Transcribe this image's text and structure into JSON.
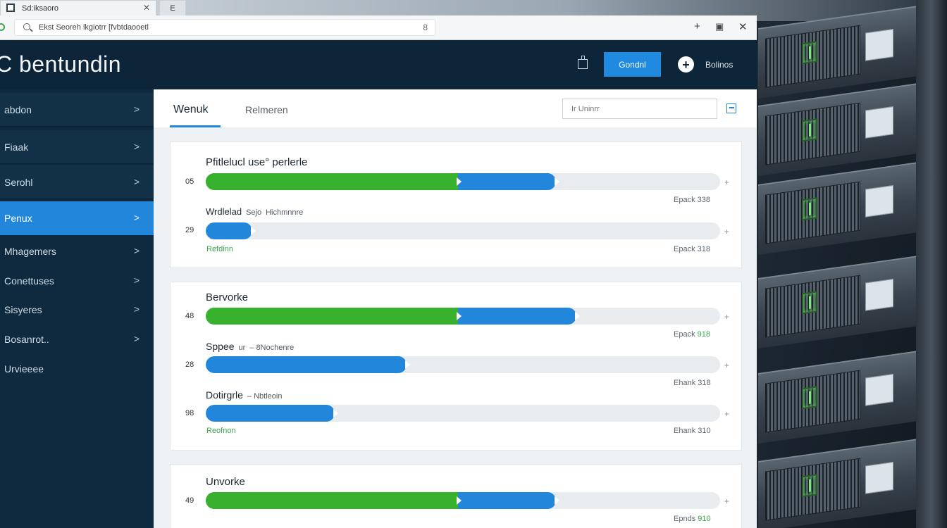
{
  "browser": {
    "tab_title": "Sd:iksaoro",
    "tab2_label": "E",
    "url": "Ekst Seoreh lkgiotrr [fvbtdaooetl",
    "url_star": "8",
    "win_add": "+",
    "win_restore": "▣",
    "win_close": "✕"
  },
  "header": {
    "brand": "C bentundin",
    "primary_button": "Gondnl",
    "avatar_glyph": "+",
    "user_name": "Bolinos"
  },
  "sidebar": {
    "items": [
      {
        "label": "abdon"
      },
      {
        "label": "Fiaak"
      },
      {
        "label": "Serohl"
      },
      {
        "label": "Penux"
      },
      {
        "label": "Mhagemers"
      },
      {
        "label": "Conettuses"
      },
      {
        "label": "Sisyeres"
      },
      {
        "label": "Bosanrot.."
      },
      {
        "label": "Urvieeee"
      }
    ],
    "chevron": ">"
  },
  "main": {
    "tabs": [
      {
        "label": "Wenuk"
      },
      {
        "label": "Relmeren"
      }
    ],
    "search_placeholder": "Ir Uninrr"
  },
  "cards": [
    {
      "rows": [
        {
          "title": "Pfitlelucl use° perlerle",
          "num": "05",
          "green": 0.49,
          "blue": 0.19,
          "meta_text": "Epack",
          "meta_value": "338",
          "meta_green": false
        },
        {
          "title": "Wrdlelad",
          "sub1": "Sejo",
          "sub2": "Hichmnnre",
          "num": "29",
          "green": 0.0,
          "blue": 0.09,
          "status": "Refdinn",
          "meta_text": "Epack",
          "meta_value": "318",
          "meta_green": false
        }
      ]
    },
    {
      "rows": [
        {
          "title": "Bervorke",
          "num": "48",
          "green": 0.49,
          "blue": 0.23,
          "meta_text": "Epack",
          "meta_value": "918",
          "meta_green": true
        },
        {
          "title": "Sppee",
          "sub1": "ur",
          "sub2": "– 8Nochenre",
          "num": "28",
          "green": 0.0,
          "blue": 0.39,
          "meta_text": "Ehank",
          "meta_value": "318",
          "meta_green": false
        },
        {
          "title": "Dotirgrle",
          "sub2": "– Nbtleoin",
          "num": "98",
          "green": 0.0,
          "blue": 0.25,
          "status": "Reofnon",
          "meta_text": "Ehank",
          "meta_value": "310",
          "meta_green": false
        }
      ]
    },
    {
      "rows": [
        {
          "title": "Unvorke",
          "num": "49",
          "green": 0.49,
          "blue": 0.19,
          "meta_text": "Epnds",
          "meta_value": "910",
          "meta_green": true
        }
      ]
    }
  ],
  "row_controls": {
    "end_glyph": "▾",
    "plus_glyph": "+"
  }
}
